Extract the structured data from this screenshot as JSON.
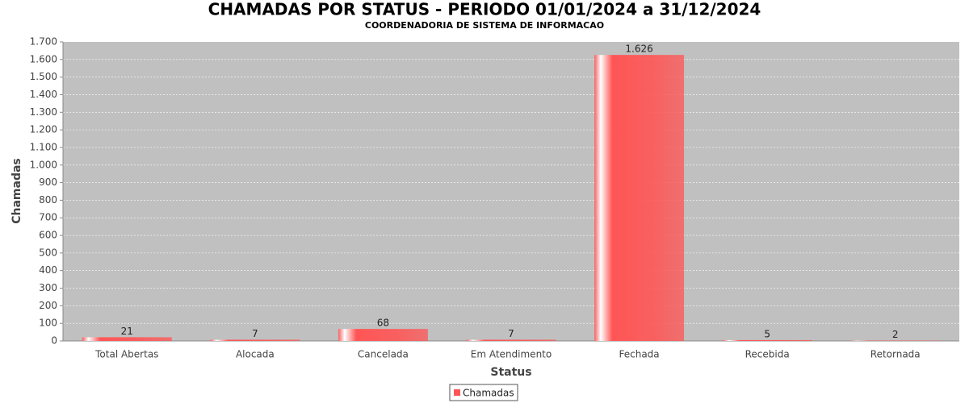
{
  "chart_data": {
    "type": "bar",
    "title": "CHAMADAS POR STATUS - PERIODO 01/01/2024 a 31/12/2024",
    "subtitle": "COORDENADORIA DE SISTEMA DE INFORMACAO",
    "x_label": "Status",
    "y_label": "Chamadas",
    "categories": [
      "Total Abertas",
      "Alocada",
      "Cancelada",
      "Em Atendimento",
      "Fechada",
      "Recebida",
      "Retornada"
    ],
    "series": [
      {
        "name": "Chamadas",
        "color": "#ff5555",
        "values": [
          21,
          7,
          68,
          7,
          1626,
          5,
          2
        ],
        "value_labels": [
          "21",
          "7",
          "68",
          "7",
          "1.626",
          "5",
          "2"
        ]
      }
    ],
    "ylim": [
      0,
      1700
    ],
    "yticks": [
      0,
      100,
      200,
      300,
      400,
      500,
      600,
      700,
      800,
      900,
      {
        "value": 1000,
        "label": "1.000"
      },
      {
        "value": 1100,
        "label": "1.100"
      },
      {
        "value": 1200,
        "label": "1.200"
      },
      {
        "value": 1300,
        "label": "1.300"
      },
      {
        "value": 1400,
        "label": "1.400"
      },
      {
        "value": 1500,
        "label": "1.500"
      },
      {
        "value": 1600,
        "label": "1.600"
      },
      {
        "value": 1700,
        "label": "1.700"
      }
    ],
    "grid": true,
    "legend": "bottom"
  }
}
